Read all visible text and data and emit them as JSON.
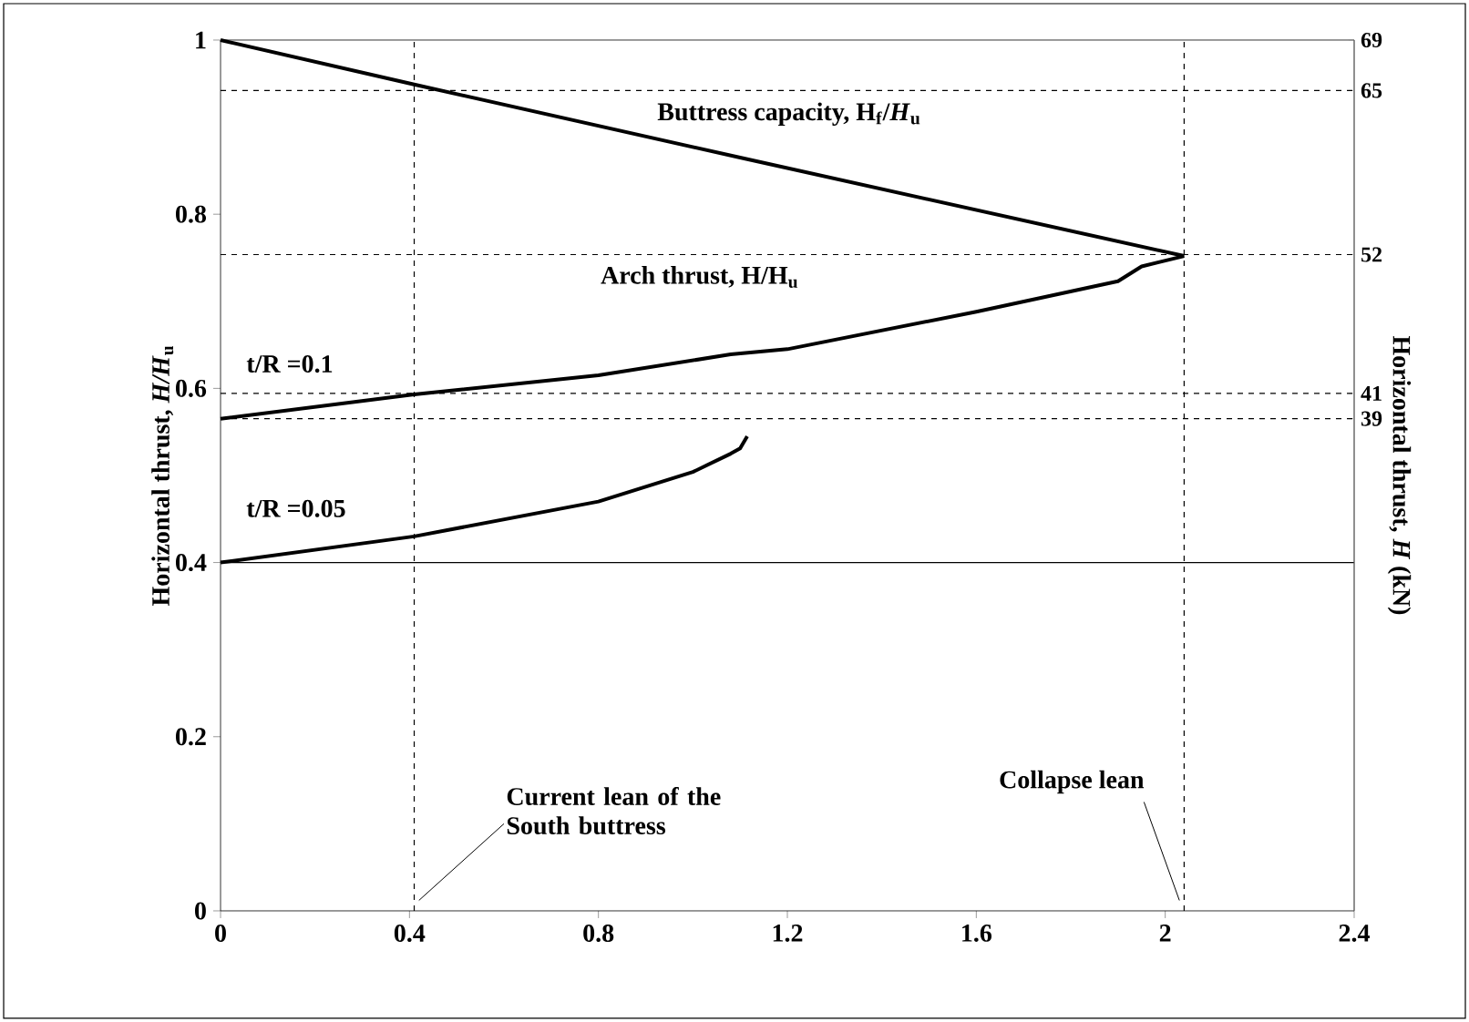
{
  "chart_data": {
    "type": "line",
    "xlabel": null,
    "ylabel": "Horizontal thrust, *H/H*$_{u}$",
    "y2label": "Horizontal thrust, *H* (kN)",
    "xlim": [
      0,
      2.4
    ],
    "xticks": [
      0,
      0.4,
      0.8,
      1.2,
      1.6,
      2,
      2.4
    ],
    "ylim": [
      0,
      1
    ],
    "yticks": [
      0,
      0.2,
      0.4,
      0.6,
      0.8,
      1
    ],
    "y2lim": [
      0,
      69
    ],
    "y2ticks": [
      39,
      41,
      52,
      65,
      69
    ],
    "series": [
      {
        "name": "Buttress capacity, H$_{f}$/*H*$_{u}$",
        "color": "#000000",
        "x": [
          0,
          0.41,
          1.1,
          2.04
        ],
        "values": [
          1,
          0.949,
          0.865,
          0.752
        ]
      },
      {
        "name": "t/R =0.1",
        "color": "#000000",
        "x": [
          0,
          0.41,
          0.8,
          1.08,
          1.2,
          1.6,
          1.9,
          1.95,
          2.04
        ],
        "values": [
          0.565,
          0.593,
          0.615,
          0.639,
          0.645,
          0.688,
          0.723,
          0.74,
          0.752
        ]
      },
      {
        "name": "t/R =0.05",
        "color": "#000000",
        "x": [
          0,
          0.41,
          0.8,
          1.0,
          1.08,
          1.1,
          1.115
        ],
        "values": [
          0.4,
          0.43,
          0.47,
          0.504,
          0.525,
          0.531,
          0.545
        ]
      }
    ],
    "ref_lines": [
      {
        "axis": "x",
        "value": 0.41,
        "label": "Current lean of the South buttress",
        "line_style": "dashed"
      },
      {
        "axis": "x",
        "value": 2.04,
        "label": "Collapse lean",
        "line_style": "dashed"
      },
      {
        "axis": "y",
        "value": 0.4,
        "label": null,
        "line_style": "solid"
      },
      {
        "axis": "y2",
        "value": 65,
        "label": null,
        "line_style": "dashed"
      },
      {
        "axis": "y2",
        "value": 52,
        "label": null,
        "line_style": "dashed"
      },
      {
        "axis": "y2",
        "value": 41,
        "label": null,
        "line_style": "dashed"
      },
      {
        "axis": "y2",
        "value": 39,
        "label": null,
        "line_style": "dashed"
      }
    ],
    "annotations": [
      "Arch thrust, H/H$_{u}$"
    ],
    "legend": false,
    "grid": false
  }
}
